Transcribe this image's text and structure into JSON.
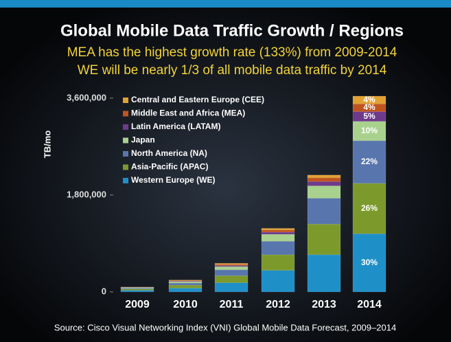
{
  "chart_data": {
    "type": "bar",
    "stacked": true,
    "title": "Global Mobile Data Traffic Growth / Regions",
    "subtitle": [
      "MEA has the highest growth rate (133%) from 2009-2014",
      "WE will be nearly 1/3 of all mobile data traffic by 2014"
    ],
    "y_label": "TB/mo",
    "source": "Source: Cisco Visual Networking Index (VNI) Global Mobile Data Forecast, 2009–2014",
    "categories": [
      "2009",
      "2010",
      "2011",
      "2012",
      "2013",
      "2014"
    ],
    "ylim": [
      0,
      3700000
    ],
    "yticks": [
      0,
      {
        "value": 1800000,
        "label": "1,800,000"
      },
      {
        "value": 3600000,
        "label": "3,600,000"
      }
    ],
    "legend": "upper left",
    "series": [
      {
        "name": "Western Europe (WE)",
        "color": "#1f8fc8",
        "values": [
          30000,
          70000,
          170000,
          400000,
          690000,
          1080000
        ],
        "share_2014": "30%"
      },
      {
        "name": "Asia-Pacific (APAC)",
        "color": "#7c9a2c",
        "values": [
          25000,
          55000,
          130000,
          290000,
          570000,
          936000
        ],
        "share_2014": "26%"
      },
      {
        "name": "North America (NA)",
        "color": "#5876ad",
        "values": [
          15000,
          40000,
          110000,
          250000,
          480000,
          792000
        ],
        "share_2014": "22%"
      },
      {
        "name": "Japan",
        "color": "#a9d18e",
        "values": [
          10000,
          25000,
          60000,
          130000,
          230000,
          360000
        ],
        "share_2014": "10%"
      },
      {
        "name": "Latin America (LATAM)",
        "color": "#6e3a8c",
        "values": [
          4000,
          10000,
          20000,
          40000,
          80000,
          180000
        ],
        "share_2014": "5%"
      },
      {
        "name": "Middle East and Africa (MEA)",
        "color": "#c0541f",
        "values": [
          3000,
          10000,
          20000,
          40000,
          70000,
          144000
        ],
        "share_2014": "4%"
      },
      {
        "name": "Central and Eastern Europe (CEE)",
        "color": "#e2a232",
        "values": [
          3000,
          10000,
          20000,
          30000,
          50000,
          144000
        ],
        "share_2014": "4%"
      }
    ]
  }
}
